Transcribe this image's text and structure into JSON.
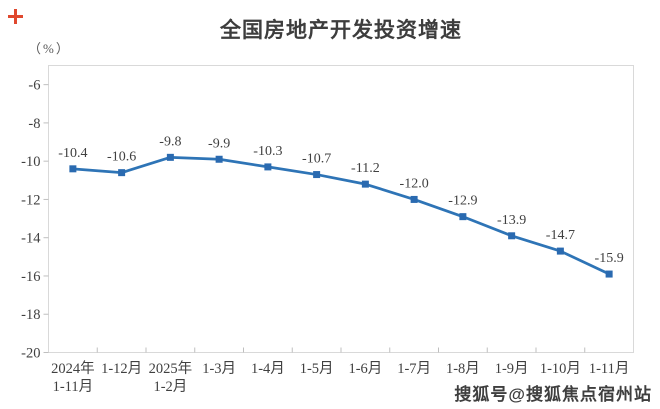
{
  "decorations": {
    "plus_icon_color": "#e0482e"
  },
  "watermark": {
    "text": "搜狐号@搜狐焦点宿州站"
  },
  "chart_data": {
    "type": "line",
    "title": "全国房地产开发投资增速",
    "unit_label": "（%）",
    "categories": [
      [
        "2024年",
        "1-11月"
      ],
      [
        "1-12月"
      ],
      [
        "2025年",
        "1-2月"
      ],
      [
        "1-3月"
      ],
      [
        "1-4月"
      ],
      [
        "1-5月"
      ],
      [
        "1-6月"
      ],
      [
        "1-7月"
      ],
      [
        "1-8月"
      ],
      [
        "1-9月"
      ],
      [
        "1-10月"
      ],
      [
        "1-11月"
      ]
    ],
    "values": [
      -10.4,
      -10.6,
      -9.8,
      -9.9,
      -10.3,
      -10.7,
      -11.2,
      -12.0,
      -12.9,
      -13.9,
      -14.7,
      -15.9
    ],
    "labels": [
      "-10.4",
      "-10.6",
      "-9.8",
      "-9.9",
      "-10.3",
      "-10.7",
      "-11.2",
      "-12.0",
      "-12.9",
      "-13.9",
      "-14.7",
      "-15.9"
    ],
    "ylim": [
      -20,
      -5
    ],
    "yticks": [
      -6,
      -8,
      -10,
      -12,
      -14,
      -16,
      -18,
      -20
    ],
    "grid": false,
    "legend": "none",
    "colors": {
      "line": "#2e74b6",
      "marker": "#2a6ab0",
      "border": "#d9d9d9",
      "tick": "#bfbfbf",
      "text": "#404040"
    }
  }
}
